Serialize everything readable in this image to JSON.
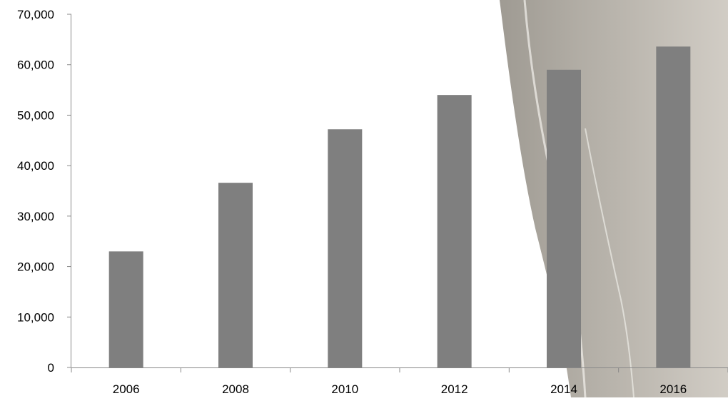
{
  "chart_data": {
    "type": "bar",
    "categories": [
      "2006",
      "2008",
      "2010",
      "2012",
      "2014",
      "2016"
    ],
    "values": [
      23000,
      36600,
      47200,
      54000,
      59000,
      63600
    ],
    "title": "",
    "xlabel": "",
    "ylabel": "",
    "ylim": [
      0,
      70000
    ],
    "y_ticks": [
      0,
      10000,
      20000,
      30000,
      40000,
      50000,
      60000,
      70000
    ],
    "y_tick_labels": [
      "0",
      "10,000",
      "20,000",
      "30,000",
      "40,000",
      "50,000",
      "60,000",
      "70,000"
    ],
    "grid": false,
    "legend": "none",
    "colors": {
      "bar": "#7f7f7f",
      "axis": "#898989",
      "background_overlay": "#b8b2a8"
    }
  }
}
